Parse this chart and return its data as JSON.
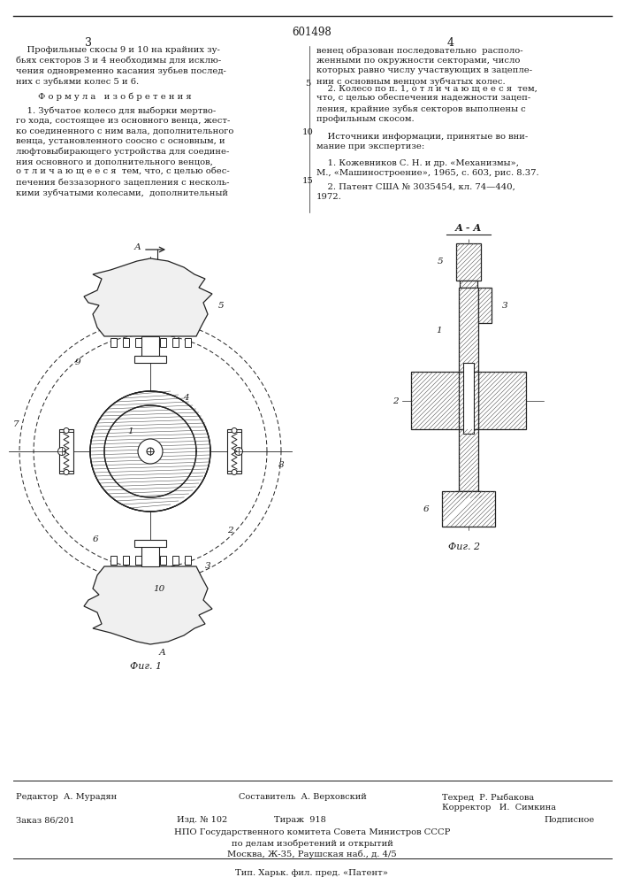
{
  "patent_number": "601498",
  "page_left": "3",
  "page_right": "4",
  "bg_color": "#ffffff",
  "text_color": "#1a1a1a",
  "title_top_left": "    Профильные скосы 9 и 10 на крайних зу-\nбьях секторов 3 и 4 необходимы для исклю-\nчения одновременно касания зубьев послед-\nних с зубьями колес 5 и 6.",
  "formula_heading": "Ф о р м у л а   и з о б р е т е н и я",
  "formula_p1": "    1. Зубчатое колесо для выборки мертво-\nго хода, состоящее из основного венца, жест-\nко соединенного с ним вала, дополнительного\nвенца, установленного соосно с основным, и\nлюфтовыбирающего устройства для соедине-\nния основного и дополнительного венцов,\nо т л и ч а ю щ е е с я  тем, что, с целью обес-\nпечения беззазорного зацепления с несколь-\nкими зубчатыми колесами,  дополнительный",
  "right_col_top": "венец образован последовательно  располо-\nженными по окружности секторами, число\nкоторых равно числу участвующих в зацепле-\nнии с основным венцом зубчатых колес.",
  "line5": "5",
  "item2": "    2. Колесо по п. 1, о т л и ч а ю щ е е с я  тем,\nчто, с целью обеспечения надежности зацеп-\nления, крайние зубья секторов выполнены с\nпрофильным скосом.",
  "sources_heading": "    Источники информации, принятые во вни-\nмание при экспертизе:",
  "line10": "10",
  "line15": "15",
  "source1": "    1. Кожевников С. Н. и др. «Механизмы»,\nМ., «Машиностроение», 1965, с. 603, рис. 8.37.",
  "source2": "    2. Патент США № 3035454, кл. 74—440,\n1972.",
  "fig1_label": "Фиг. 1",
  "fig2_label": "Фиг. 2",
  "fig_aa_label": "А - А",
  "footer_zak": "Заказ 86/201",
  "footer_izd": "Изд. № 102",
  "footer_tirazh": "Тираж  918",
  "footer_podp": "Подписное",
  "footer_npo": "НПО Государственного комитета Совета Министров СССР",
  "footer_dela": "по делам изобретений и открытий",
  "footer_addr": "Москва, Ж-35, Раушская наб., д. 4/5",
  "footer_tip": "Тип. Харьк. фил. пред. «Патент»",
  "editor_line": "Редактор  А. Мурадян",
  "composer_line": "Составитель  А. Верховский",
  "techred_line": "Техред  Р. Рыбакова",
  "corrector_line": "Корректор   И.  Симкина"
}
